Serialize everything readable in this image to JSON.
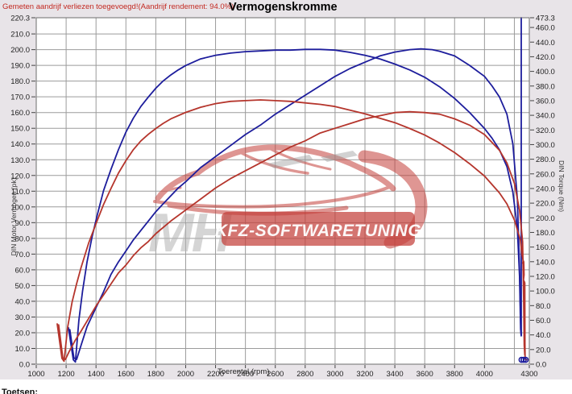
{
  "header": {
    "status_text": "Gemeten aandrijf verliezen toegevoegd!(Aandrijf rendement: 94.0%)",
    "title": "Vermogenskromme"
  },
  "watermark": {
    "initials": "MH",
    "brand": "KFZ-SOFTWARETUNING"
  },
  "footer": {
    "label": "Toetsen:"
  },
  "chart_data": {
    "type": "line",
    "title": "Vermogenskromme",
    "xlabel": "Toerental (rpm)",
    "ylabel_left": "DIN Motor Vermogen (pk)",
    "ylabel_right": "DIN Torque (Nm)",
    "x_range": [
      1000,
      4300
    ],
    "y_left_range": [
      0,
      220.3
    ],
    "y_right_range": [
      0,
      473.3
    ],
    "grid": true,
    "legend": "none",
    "x_ticks": [
      1000,
      1200,
      1400,
      1600,
      1800,
      2000,
      2200,
      2400,
      2600,
      2800,
      3000,
      3200,
      3400,
      3600,
      3800,
      4000,
      4300
    ],
    "y_left_ticks": [
      220.3,
      210,
      200,
      190,
      180,
      170,
      160,
      150,
      140,
      130,
      120,
      110,
      100,
      90,
      80,
      70,
      60,
      50,
      40,
      30,
      20,
      10,
      0
    ],
    "y_right_ticks": [
      473.3,
      460,
      440,
      420,
      400,
      380,
      360,
      340,
      320,
      300,
      280,
      260,
      240,
      220,
      200,
      180,
      160,
      140,
      120,
      100,
      80,
      60,
      40,
      20,
      0
    ],
    "colors": {
      "after_tuning": "#1d1d9c",
      "before_tuning": "#b5352c"
    },
    "series": [
      {
        "name": "torque-after-nm",
        "axis": "right",
        "color": "#1d1d9c",
        "points": [
          [
            1215,
            50
          ],
          [
            1248,
            6
          ],
          [
            1262,
            3
          ],
          [
            1285,
            60
          ],
          [
            1310,
            100
          ],
          [
            1340,
            140
          ],
          [
            1375,
            175
          ],
          [
            1410,
            205
          ],
          [
            1450,
            237
          ],
          [
            1500,
            266
          ],
          [
            1550,
            293
          ],
          [
            1600,
            317
          ],
          [
            1650,
            336
          ],
          [
            1700,
            352
          ],
          [
            1750,
            365
          ],
          [
            1800,
            377
          ],
          [
            1850,
            387
          ],
          [
            1900,
            395
          ],
          [
            1950,
            402
          ],
          [
            2000,
            408
          ],
          [
            2100,
            417
          ],
          [
            2200,
            422
          ],
          [
            2300,
            425
          ],
          [
            2400,
            427
          ],
          [
            2500,
            428
          ],
          [
            2600,
            429
          ],
          [
            2700,
            429
          ],
          [
            2800,
            430
          ],
          [
            2900,
            430
          ],
          [
            3000,
            429
          ],
          [
            3100,
            426
          ],
          [
            3200,
            422
          ],
          [
            3300,
            417
          ],
          [
            3400,
            410
          ],
          [
            3500,
            402
          ],
          [
            3600,
            392
          ],
          [
            3700,
            379
          ],
          [
            3800,
            363
          ],
          [
            3900,
            344
          ],
          [
            4000,
            322
          ],
          [
            4050,
            309
          ],
          [
            4100,
            293
          ],
          [
            4150,
            270
          ],
          [
            4190,
            235
          ],
          [
            4220,
            185
          ],
          [
            4235,
            120
          ],
          [
            4242,
            48
          ],
          [
            4245,
            40
          ]
        ]
      },
      {
        "name": "power-after-pk",
        "axis": "left",
        "color": "#1d1d9c",
        "points": [
          [
            1225,
            22
          ],
          [
            1252,
            4
          ],
          [
            1270,
            3
          ],
          [
            1300,
            12
          ],
          [
            1340,
            24
          ],
          [
            1400,
            36
          ],
          [
            1450,
            46
          ],
          [
            1500,
            57
          ],
          [
            1550,
            65
          ],
          [
            1600,
            72
          ],
          [
            1650,
            79
          ],
          [
            1700,
            85
          ],
          [
            1750,
            91
          ],
          [
            1800,
            97
          ],
          [
            1850,
            102
          ],
          [
            1900,
            107
          ],
          [
            1950,
            112
          ],
          [
            2000,
            116
          ],
          [
            2100,
            125
          ],
          [
            2200,
            132
          ],
          [
            2300,
            139
          ],
          [
            2400,
            146
          ],
          [
            2500,
            152
          ],
          [
            2600,
            159
          ],
          [
            2700,
            165
          ],
          [
            2800,
            171
          ],
          [
            2900,
            177
          ],
          [
            3000,
            183
          ],
          [
            3100,
            188
          ],
          [
            3200,
            192
          ],
          [
            3300,
            196
          ],
          [
            3400,
            198.5
          ],
          [
            3500,
            200
          ],
          [
            3575,
            200.5
          ],
          [
            3650,
            200
          ],
          [
            3700,
            199
          ],
          [
            3800,
            196
          ],
          [
            3900,
            190
          ],
          [
            4000,
            183
          ],
          [
            4050,
            177
          ],
          [
            4100,
            170
          ],
          [
            4150,
            159
          ],
          [
            4190,
            140
          ],
          [
            4220,
            105
          ],
          [
            4235,
            60
          ],
          [
            4243,
            25
          ],
          [
            4246,
            18
          ]
        ]
      },
      {
        "name": "end-spike-after",
        "axis": "right",
        "color": "#1d1d9c",
        "points": [
          [
            4246,
            473.3
          ],
          [
            4246,
            40
          ]
        ]
      },
      {
        "name": "torque-before-nm",
        "axis": "right",
        "color": "#b5352c",
        "points": [
          [
            1140,
            55
          ],
          [
            1172,
            8
          ],
          [
            1186,
            4
          ],
          [
            1210,
            50
          ],
          [
            1240,
            85
          ],
          [
            1270,
            110
          ],
          [
            1300,
            132
          ],
          [
            1350,
            165
          ],
          [
            1400,
            192
          ],
          [
            1450,
            218
          ],
          [
            1500,
            240
          ],
          [
            1550,
            261
          ],
          [
            1600,
            278
          ],
          [
            1650,
            293
          ],
          [
            1700,
            305
          ],
          [
            1750,
            314
          ],
          [
            1800,
            322
          ],
          [
            1850,
            329
          ],
          [
            1900,
            335
          ],
          [
            2000,
            344
          ],
          [
            2100,
            351
          ],
          [
            2200,
            356
          ],
          [
            2300,
            359
          ],
          [
            2400,
            360
          ],
          [
            2500,
            361
          ],
          [
            2600,
            360
          ],
          [
            2700,
            359
          ],
          [
            2800,
            357
          ],
          [
            2900,
            355
          ],
          [
            3000,
            352
          ],
          [
            3100,
            347
          ],
          [
            3200,
            342
          ],
          [
            3300,
            336
          ],
          [
            3400,
            330
          ],
          [
            3500,
            322
          ],
          [
            3600,
            313
          ],
          [
            3700,
            302
          ],
          [
            3800,
            289
          ],
          [
            3900,
            274
          ],
          [
            4000,
            257
          ],
          [
            4100,
            234
          ],
          [
            4150,
            219
          ],
          [
            4200,
            197
          ],
          [
            4240,
            170
          ],
          [
            4252,
            148
          ],
          [
            4260,
            141
          ],
          [
            4256,
            138
          ],
          [
            4263,
            140
          ],
          [
            4265,
            122
          ],
          [
            4261,
            115
          ],
          [
            4268,
            112
          ],
          [
            4270,
            111
          ],
          [
            4271,
            30
          ],
          [
            4272,
            7
          ],
          [
            4282,
            6
          ]
        ]
      },
      {
        "name": "power-before-pk",
        "axis": "left",
        "color": "#b5352c",
        "points": [
          [
            1150,
            25
          ],
          [
            1178,
            4
          ],
          [
            1195,
            3
          ],
          [
            1220,
            8
          ],
          [
            1260,
            15
          ],
          [
            1300,
            21
          ],
          [
            1350,
            29
          ],
          [
            1400,
            37
          ],
          [
            1450,
            44
          ],
          [
            1500,
            51
          ],
          [
            1550,
            58
          ],
          [
            1600,
            63
          ],
          [
            1650,
            69
          ],
          [
            1700,
            74
          ],
          [
            1750,
            78
          ],
          [
            1800,
            83
          ],
          [
            1900,
            91
          ],
          [
            2000,
            98
          ],
          [
            2100,
            105
          ],
          [
            2200,
            112
          ],
          [
            2300,
            118
          ],
          [
            2400,
            123
          ],
          [
            2500,
            128
          ],
          [
            2600,
            133
          ],
          [
            2700,
            138
          ],
          [
            2800,
            142
          ],
          [
            2900,
            147
          ],
          [
            3000,
            150
          ],
          [
            3100,
            153
          ],
          [
            3200,
            156
          ],
          [
            3300,
            158
          ],
          [
            3400,
            160
          ],
          [
            3500,
            160.5
          ],
          [
            3600,
            160
          ],
          [
            3700,
            159
          ],
          [
            3800,
            156
          ],
          [
            3900,
            152
          ],
          [
            4000,
            146
          ],
          [
            4100,
            136
          ],
          [
            4150,
            128
          ],
          [
            4200,
            115
          ],
          [
            4235,
            98
          ],
          [
            4255,
            78
          ],
          [
            4262,
            40
          ],
          [
            4266,
            12
          ],
          [
            4270,
            6
          ]
        ]
      }
    ],
    "end_markers": {
      "axis": "right",
      "color": "#1d1d9c",
      "points": [
        [
          4248,
          6
        ],
        [
          4262,
          6
        ],
        [
          4276,
          6
        ]
      ]
    },
    "annotations": {
      "peak_power_after_pk": 200,
      "peak_torque_after_nm": 430,
      "peak_power_before_pk": 161,
      "peak_torque_before_nm": 361
    }
  }
}
